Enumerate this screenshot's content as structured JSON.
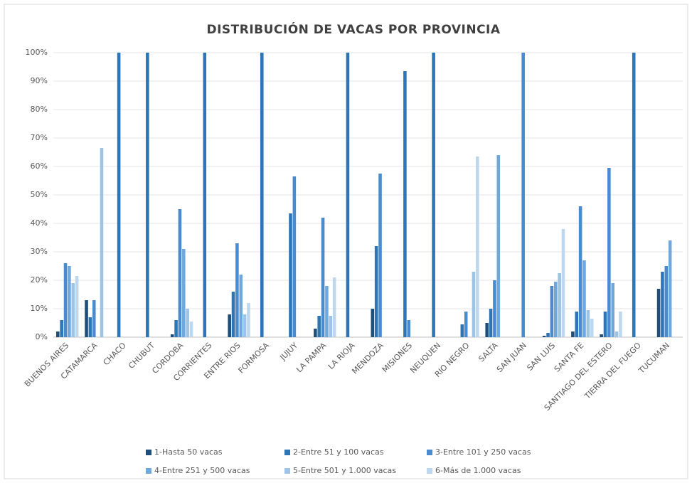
{
  "chart_data": {
    "type": "bar",
    "title": "DISTRIBUCIÓN DE VACAS POR PROVINCIA",
    "categories": [
      "BUENOS AIRES",
      "CATAMARCA",
      "CHACO",
      "CHUBUT",
      "CORDOBA",
      "CORRIENTES",
      "ENTRE RIOS",
      "FORMOSA",
      "JUJUY",
      "LA PAMPA",
      "LA RIOJA",
      "MENDOZA",
      "MISIONES",
      "NEUQUEN",
      "RIO NEGRO",
      "SALTA",
      "SAN JUAN",
      "SAN LUIS",
      "SANTA FE",
      "SANTIAGO DEL ESTERO",
      "TIERRA DEL FUEGO",
      "TUCUMAN"
    ],
    "series": [
      {
        "name": "1-Hasta 50 vacas",
        "color": "#1f4e79",
        "values": [
          2,
          13,
          0,
          0,
          1,
          0,
          8,
          0,
          0,
          3,
          0,
          10,
          0,
          0,
          0,
          5,
          0,
          0.5,
          2,
          1,
          0,
          17
        ]
      },
      {
        "name": "2-Entre 51 y 100 vacas",
        "color": "#2e75b6",
        "values": [
          6,
          7,
          100,
          100,
          6,
          100,
          16,
          100,
          43.5,
          7.5,
          100,
          32,
          93.5,
          100,
          4.5,
          10,
          0,
          1.5,
          9,
          9,
          100,
          23
        ]
      },
      {
        "name": "3-Entre 101 y 250 vacas",
        "color": "#4a8bd0",
        "values": [
          26,
          13,
          0,
          0,
          45,
          0,
          33,
          0,
          56.5,
          42,
          0,
          57.5,
          6,
          0,
          9,
          20,
          100,
          18,
          46,
          59.5,
          0,
          25
        ]
      },
      {
        "name": "4-Entre 251 y 500 vacas",
        "color": "#6fa8dc",
        "values": [
          25,
          0,
          0,
          0,
          31,
          0,
          22,
          0,
          0,
          18,
          0,
          0,
          0,
          0,
          0,
          64,
          0,
          19.5,
          27,
          19,
          0,
          34
        ]
      },
      {
        "name": "5-Entre 501 y 1.000 vacas",
        "color": "#9dc3e6",
        "values": [
          19,
          66.5,
          0,
          0,
          10,
          0,
          8,
          0,
          0,
          7.5,
          0,
          0,
          0,
          0,
          23,
          0,
          0,
          22.5,
          9.5,
          2,
          0,
          0
        ]
      },
      {
        "name": "6-Más de 1.000 vacas",
        "color": "#bdd7ee",
        "values": [
          21.5,
          0,
          0,
          0,
          5.5,
          0,
          12,
          0,
          0,
          21,
          0,
          0,
          0,
          0,
          63.5,
          0,
          0,
          38,
          6.5,
          9,
          0,
          0
        ]
      }
    ],
    "ylim": [
      0,
      100
    ],
    "yticks": [
      {
        "value": 0,
        "label": "0%"
      },
      {
        "value": 10,
        "label": "10%"
      },
      {
        "value": 20,
        "label": "20%"
      },
      {
        "value": 30,
        "label": "30%"
      },
      {
        "value": 40,
        "label": "40%"
      },
      {
        "value": 50,
        "label": "50%"
      },
      {
        "value": 60,
        "label": "60%"
      },
      {
        "value": 70,
        "label": "70%"
      },
      {
        "value": 80,
        "label": "80%"
      },
      {
        "value": 90,
        "label": "90%"
      },
      {
        "value": 100,
        "label": "100%"
      }
    ],
    "grid": true,
    "legend": "bottom"
  }
}
